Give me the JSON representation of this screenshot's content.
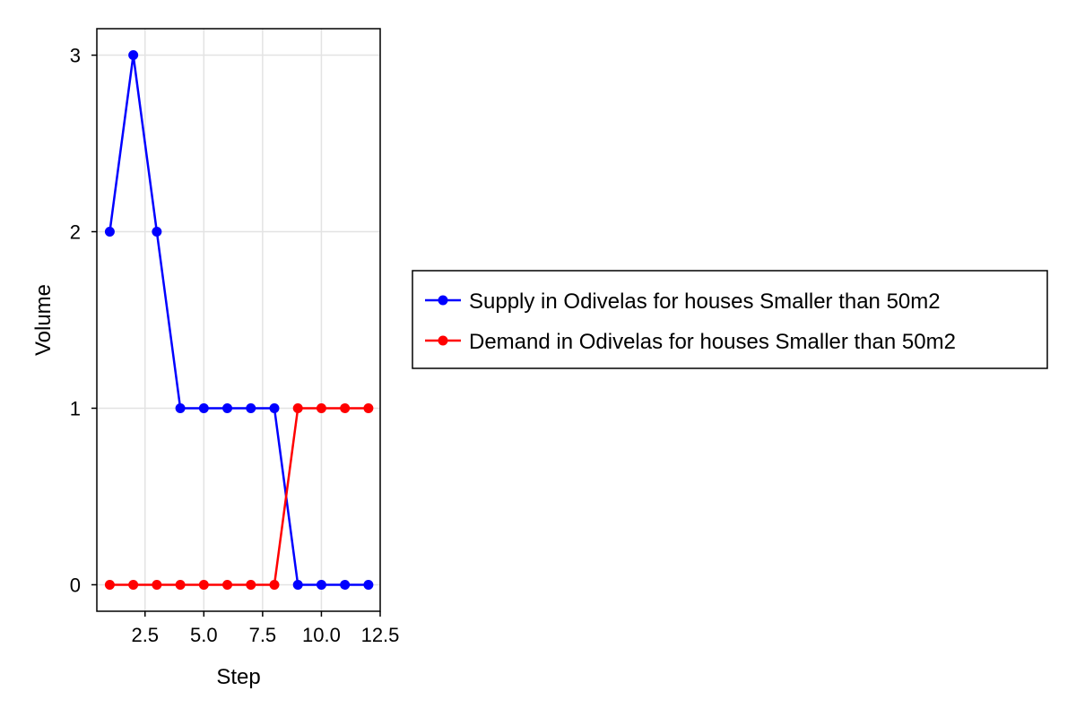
{
  "chart_data": {
    "type": "line",
    "title": "",
    "xlabel": "Step",
    "ylabel": "Volume",
    "xlim": [
      0.45,
      12.5
    ],
    "ylim": [
      -0.15,
      3.15
    ],
    "x_ticks": [
      2.5,
      5.0,
      7.5,
      10.0,
      12.5
    ],
    "x_tick_labels": [
      "2.5",
      "5.0",
      "7.5",
      "10.0",
      "12.5"
    ],
    "y_ticks": [
      0,
      1,
      2,
      3
    ],
    "y_tick_labels": [
      "0",
      "1",
      "2",
      "3"
    ],
    "grid": true,
    "legend_position": "right",
    "x": [
      1,
      2,
      3,
      4,
      5,
      6,
      7,
      8,
      9,
      10,
      11,
      12
    ],
    "series": [
      {
        "name": "Supply in Odivelas for houses Smaller than 50m2",
        "color": "#0000ff",
        "values": [
          2,
          3,
          2,
          1,
          1,
          1,
          1,
          1,
          0,
          0,
          0,
          0
        ]
      },
      {
        "name": "Demand in Odivelas for houses Smaller than 50m2",
        "color": "#ff0000",
        "values": [
          0,
          0,
          0,
          0,
          0,
          0,
          0,
          0,
          1,
          1,
          1,
          1
        ]
      }
    ]
  }
}
